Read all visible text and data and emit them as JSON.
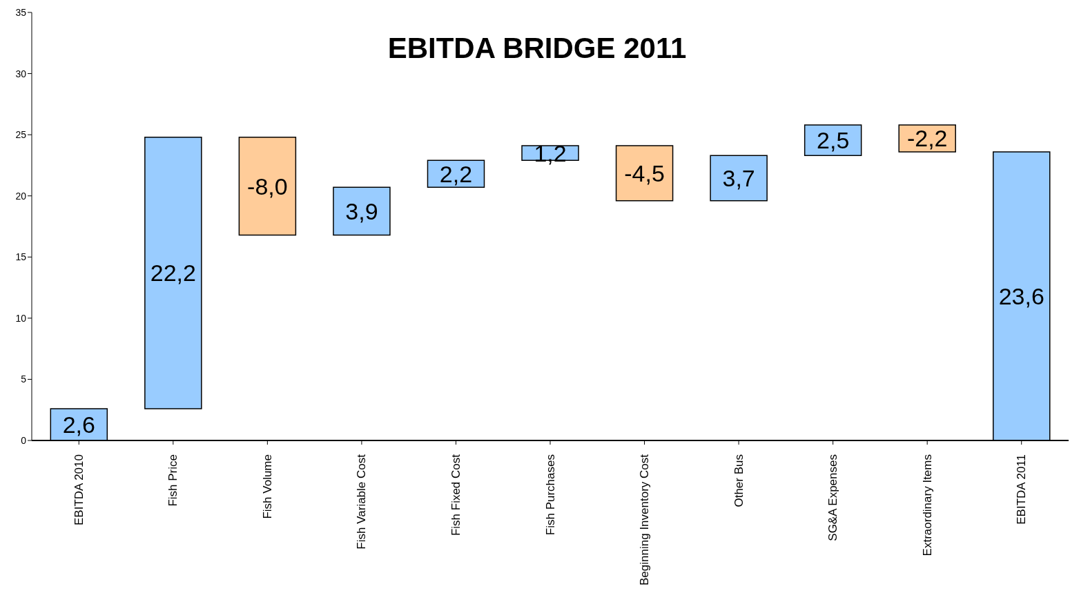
{
  "chart_data": {
    "type": "bar",
    "title": "EBITDA BRIDGE 2011",
    "categories": [
      "EBITDA 2010",
      "Fish Price",
      "Fish Volume",
      "Fish Variable Cost",
      "Fish Fixed Cost",
      "Fish Purchases",
      "Beginning Inventory Cost",
      "Other Bus",
      "SG&A Expenses",
      "Extraordinary Items",
      "EBITDA 2011"
    ],
    "values": [
      2.6,
      22.2,
      -8.0,
      3.9,
      2.2,
      1.2,
      -4.5,
      3.7,
      2.5,
      -2.2,
      23.6
    ],
    "base": [
      0,
      2.6,
      24.8,
      16.8,
      20.7,
      22.9,
      24.1,
      19.6,
      23.3,
      25.8,
      0
    ],
    "colors": [
      "#99ccff",
      "#99ccff",
      "#ffcc99",
      "#99ccff",
      "#99ccff",
      "#99ccff",
      "#ffcc99",
      "#99ccff",
      "#99ccff",
      "#ffcc99",
      "#99ccff"
    ],
    "value_labels": [
      "2,6",
      "22,2",
      "-8,0",
      "3,9",
      "2,2",
      "1,2",
      "-4,5",
      "3,7",
      "2,5",
      "-2,2",
      "23,6"
    ],
    "ylim": [
      0,
      35
    ],
    "yticks": [
      0,
      5,
      10,
      15,
      20,
      25,
      30,
      35
    ],
    "grid": false
  }
}
